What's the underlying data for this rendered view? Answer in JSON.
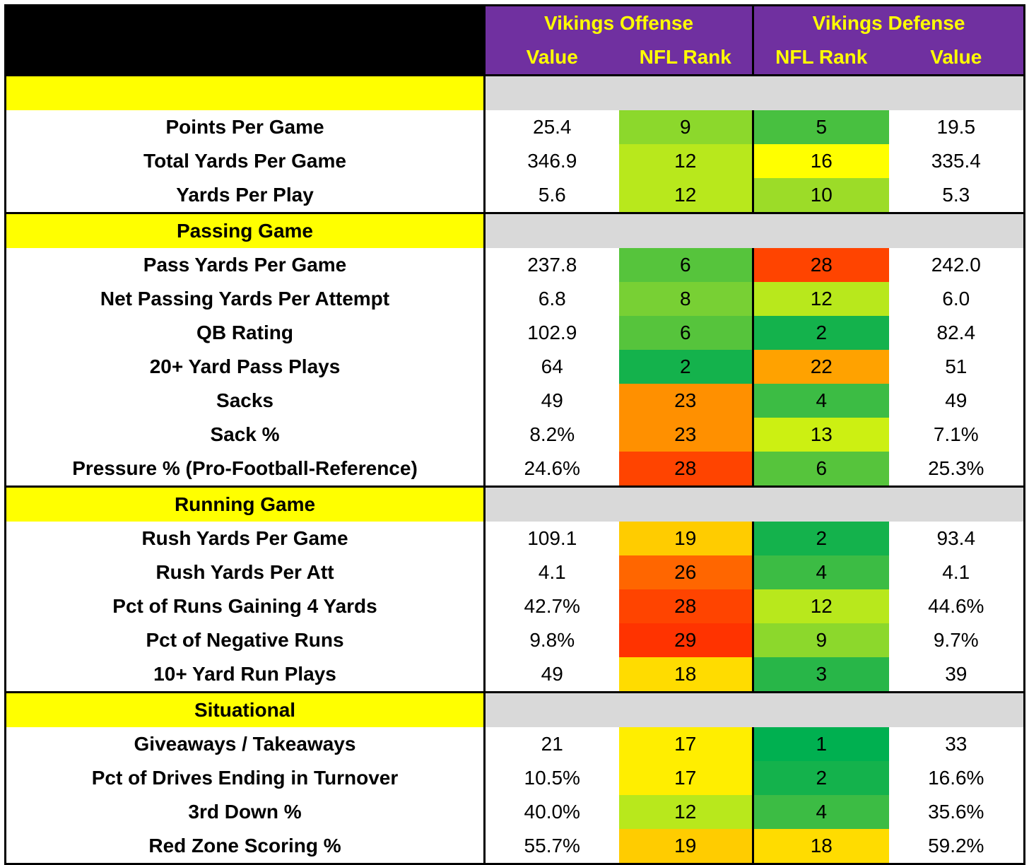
{
  "header": {
    "offense_title": "Vikings Offense",
    "defense_title": "Vikings Defense",
    "offense_value_label": "Value",
    "offense_rank_label": "NFL Rank",
    "defense_rank_label": "NFL Rank",
    "defense_value_label": "Value"
  },
  "rank_colors": {
    "1": "#00b050",
    "2": "#14b24c",
    "3": "#28b648",
    "4": "#3cbc44",
    "5": "#48c040",
    "6": "#56c43c",
    "8": "#78d034",
    "9": "#8cd82c",
    "10": "#9cdc28",
    "12": "#b8e81c",
    "13": "#ccf012",
    "16": "#ffff00",
    "17": "#ffee00",
    "18": "#ffdc00",
    "19": "#ffcc00",
    "22": "#ffa200",
    "23": "#ff9000",
    "26": "#ff6600",
    "28": "#ff4400",
    "29": "#ff3300"
  },
  "sections": [
    {
      "title": "",
      "rows": [
        {
          "label": "Points Per Game",
          "off_value": "25.4",
          "off_rank": "9",
          "def_rank": "5",
          "def_value": "19.5"
        },
        {
          "label": "Total Yards Per Game",
          "off_value": "346.9",
          "off_rank": "12",
          "def_rank": "16",
          "def_value": "335.4"
        },
        {
          "label": "Yards Per Play",
          "off_value": "5.6",
          "off_rank": "12",
          "def_rank": "10",
          "def_value": "5.3"
        }
      ]
    },
    {
      "title": "Passing Game",
      "rows": [
        {
          "label": "Pass Yards Per Game",
          "off_value": "237.8",
          "off_rank": "6",
          "def_rank": "28",
          "def_value": "242.0"
        },
        {
          "label": "Net Passing Yards Per Attempt",
          "off_value": "6.8",
          "off_rank": "8",
          "def_rank": "12",
          "def_value": "6.0"
        },
        {
          "label": "QB Rating",
          "off_value": "102.9",
          "off_rank": "6",
          "def_rank": "2",
          "def_value": "82.4"
        },
        {
          "label": "20+ Yard Pass Plays",
          "off_value": "64",
          "off_rank": "2",
          "def_rank": "22",
          "def_value": "51"
        },
        {
          "label": "Sacks",
          "off_value": "49",
          "off_rank": "23",
          "def_rank": "4",
          "def_value": "49"
        },
        {
          "label": "Sack %",
          "off_value": "8.2%",
          "off_rank": "23",
          "def_rank": "13",
          "def_value": "7.1%"
        },
        {
          "label": "Pressure % (Pro-Football-Reference)",
          "off_value": "24.6%",
          "off_rank": "28",
          "def_rank": "6",
          "def_value": "25.3%"
        }
      ]
    },
    {
      "title": "Running Game",
      "rows": [
        {
          "label": "Rush Yards Per Game",
          "off_value": "109.1",
          "off_rank": "19",
          "def_rank": "2",
          "def_value": "93.4"
        },
        {
          "label": "Rush Yards Per Att",
          "off_value": "4.1",
          "off_rank": "26",
          "def_rank": "4",
          "def_value": "4.1"
        },
        {
          "label": "Pct of Runs Gaining 4 Yards",
          "off_value": "42.7%",
          "off_rank": "28",
          "def_rank": "12",
          "def_value": "44.6%"
        },
        {
          "label": "Pct of Negative Runs",
          "off_value": "9.8%",
          "off_rank": "29",
          "def_rank": "9",
          "def_value": "9.7%"
        },
        {
          "label": "10+ Yard Run Plays",
          "off_value": "49",
          "off_rank": "18",
          "def_rank": "3",
          "def_value": "39"
        }
      ]
    },
    {
      "title": "Situational",
      "rows": [
        {
          "label": "Giveaways / Takeaways",
          "off_value": "21",
          "off_rank": "17",
          "def_rank": "1",
          "def_value": "33"
        },
        {
          "label": "Pct of Drives Ending in Turnover",
          "off_value": "10.5%",
          "off_rank": "17",
          "def_rank": "2",
          "def_value": "16.6%"
        },
        {
          "label": "3rd Down %",
          "off_value": "40.0%",
          "off_rank": "12",
          "def_rank": "4",
          "def_value": "35.6%"
        },
        {
          "label": "Red Zone Scoring %",
          "off_value": "55.7%",
          "off_rank": "19",
          "def_rank": "18",
          "def_value": "59.2%"
        }
      ]
    }
  ]
}
